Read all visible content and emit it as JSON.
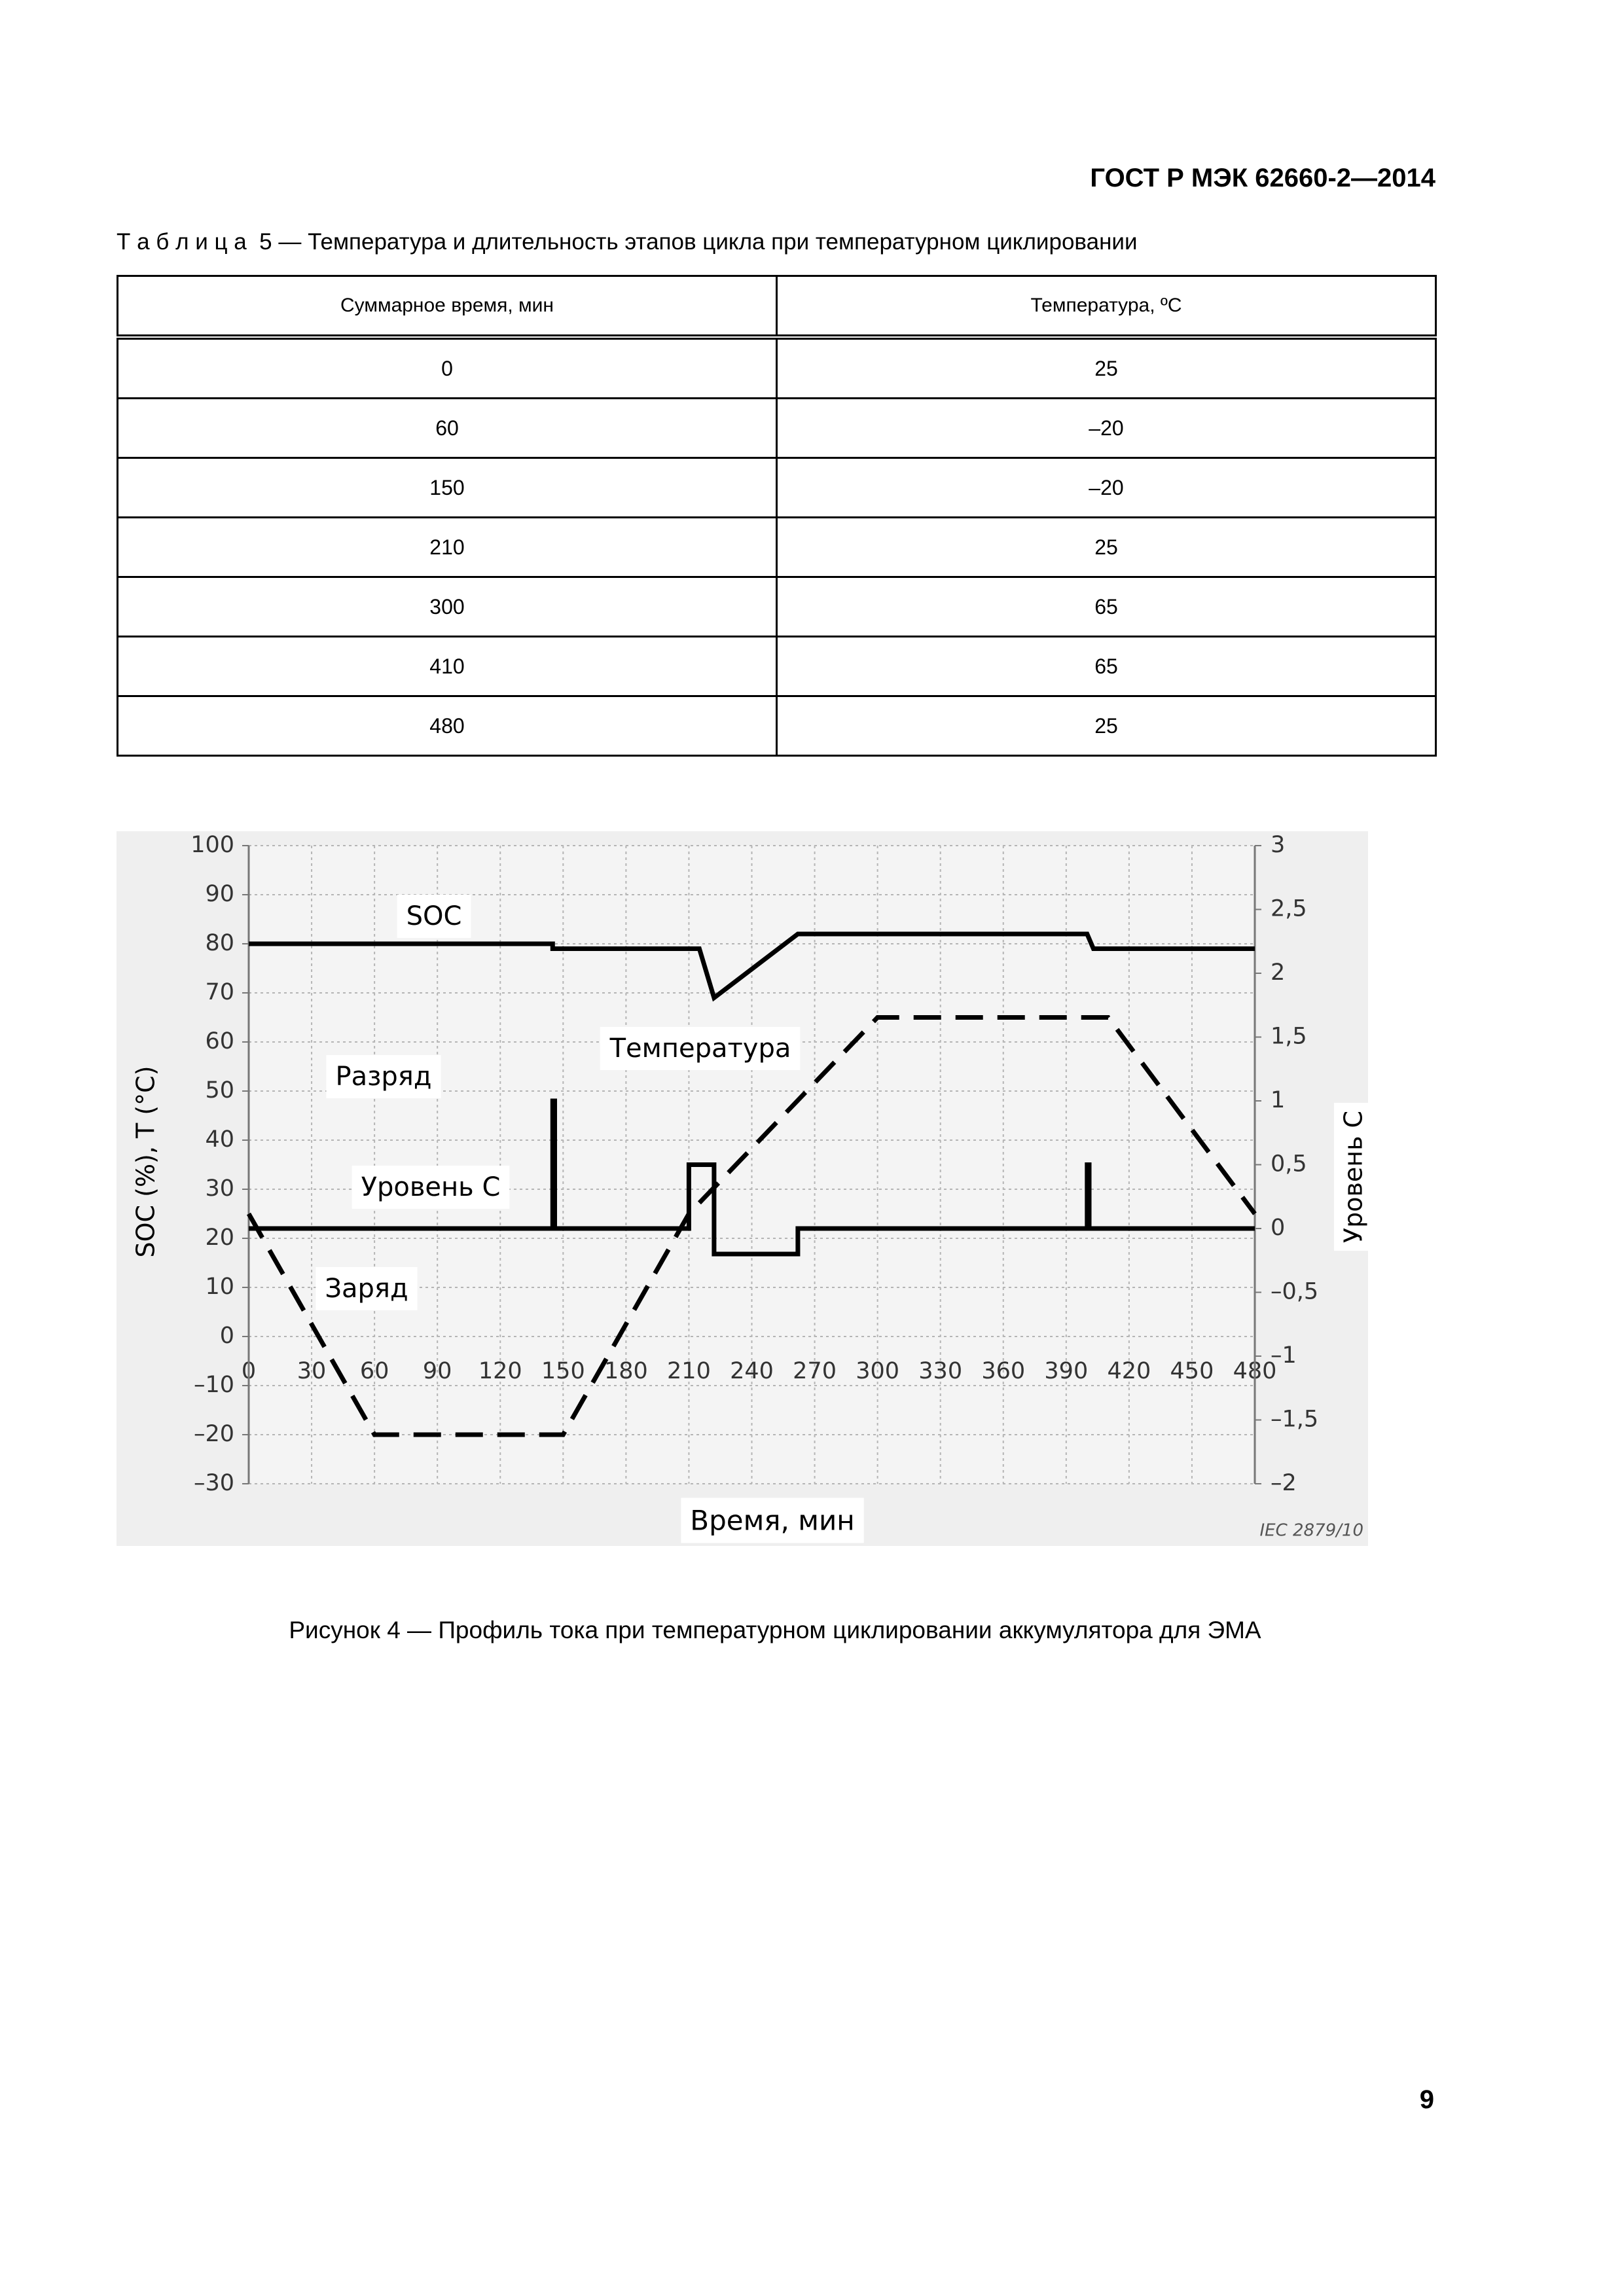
{
  "header": {
    "title": "ГОСТ Р МЭК 62660-2—2014"
  },
  "table": {
    "caption": "Т а б л и ц а  5 — Температура и длительность этапов цикла при температурном циклировании",
    "columns": [
      "Суммарное время, мин",
      "Температура, ºС"
    ],
    "rows": [
      [
        "0",
        "25"
      ],
      [
        "60",
        "–20"
      ],
      [
        "150",
        "–20"
      ],
      [
        "210",
        "25"
      ],
      [
        "300",
        "65"
      ],
      [
        "410",
        "65"
      ],
      [
        "480",
        "25"
      ]
    ]
  },
  "chart_data": {
    "type": "line",
    "xlabel": "Время, мин",
    "ylabel": "SOC  (%), T (°C)",
    "y2label": "Уровень С",
    "xlim": [
      0,
      480
    ],
    "xticks": [
      0,
      30,
      60,
      90,
      120,
      150,
      180,
      210,
      240,
      270,
      300,
      330,
      360,
      390,
      420,
      450,
      480
    ],
    "ylim": [
      -30,
      100
    ],
    "yticks": [
      {
        "value": -30,
        "label": "–30"
      },
      {
        "value": -20,
        "label": "–20"
      },
      {
        "value": -10,
        "label": "–10"
      },
      0,
      10,
      20,
      30,
      40,
      50,
      60,
      70,
      80,
      90,
      100
    ],
    "y2lim": [
      -2,
      3
    ],
    "y2ticks": [
      {
        "value": -2,
        "label": "–2"
      },
      {
        "value": -1.5,
        "label": "–1,5"
      },
      {
        "value": -1,
        "label": "–1"
      },
      {
        "value": -0.5,
        "label": "–0,5"
      },
      0,
      {
        "value": 0.5,
        "label": "0,5"
      },
      1,
      {
        "value": 1.5,
        "label": "1,5"
      },
      2,
      {
        "value": 2.5,
        "label": "2,5"
      },
      3
    ],
    "grid": true,
    "series": [
      {
        "name": "SOC",
        "color": "#000000",
        "line_style": "solid",
        "x": [
          0,
          145,
          145,
          215,
          222,
          262,
          400,
          403,
          480
        ],
        "values": [
          80,
          80,
          79,
          79,
          69,
          82,
          82,
          79,
          79
        ]
      },
      {
        "name": "Температура",
        "color": "#000000",
        "line_style": "dashed",
        "x": [
          0,
          60,
          150,
          210,
          300,
          410,
          480
        ],
        "values": [
          25,
          -20,
          -20,
          25,
          65,
          65,
          25
        ]
      },
      {
        "name": "Уровень С",
        "color": "#000000",
        "line_style": "solid",
        "axis": "y2",
        "x": [
          0,
          145,
          145,
          146,
          146,
          210,
          210,
          222,
          222,
          262,
          262,
          400,
          400,
          401,
          401,
          480
        ],
        "values": [
          0,
          0,
          1,
          1,
          0,
          0,
          0.5,
          0.5,
          -0.2,
          -0.2,
          0,
          0,
          0.5,
          0.5,
          0,
          0
        ]
      }
    ],
    "annotations": [
      "Разряд",
      "Заряд",
      "IEC  2879/10"
    ]
  },
  "figure": {
    "caption": "Рисунок 4 — Профиль тока при температурном циклировании аккумулятора для ЭМА"
  },
  "footer": {
    "page_number": "9"
  }
}
